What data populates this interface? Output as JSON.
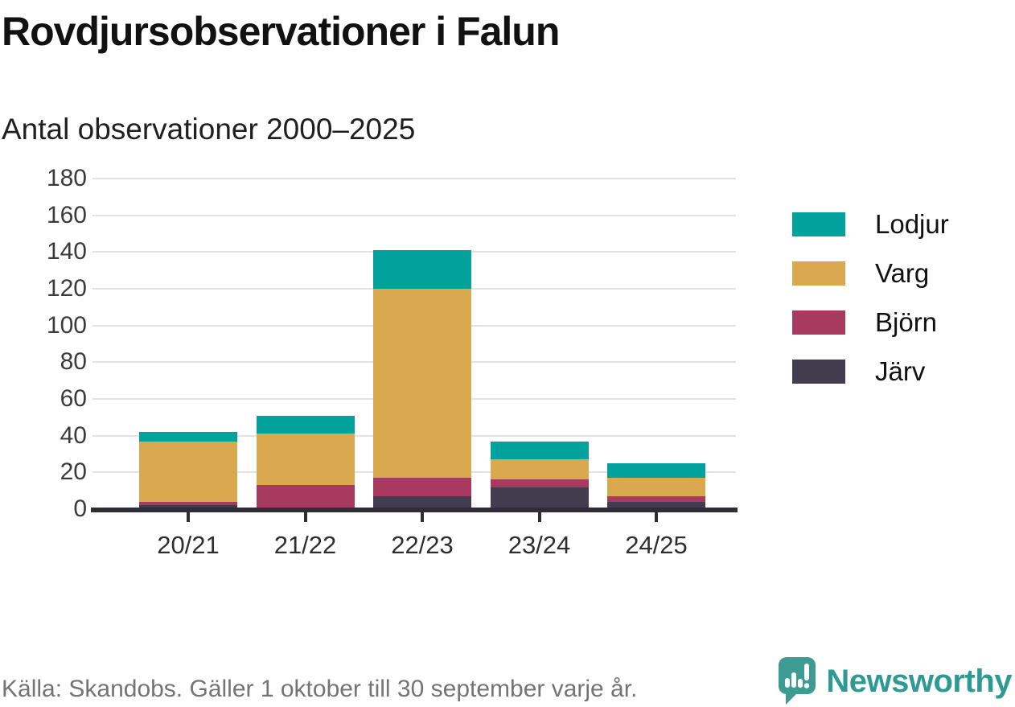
{
  "header": {
    "title": "Rovdjursobservationer i Falun",
    "subtitle": "Antal observationer 2000–2025"
  },
  "chart_data": {
    "type": "bar",
    "stacked": true,
    "categories": [
      "20/21",
      "21/22",
      "22/23",
      "23/24",
      "24/25"
    ],
    "series": [
      {
        "name": "Lodjur",
        "color": "#00a29b",
        "values": [
          5,
          10,
          21,
          10,
          8
        ]
      },
      {
        "name": "Varg",
        "color": "#d9a84f",
        "values": [
          33,
          28,
          103,
          11,
          10
        ]
      },
      {
        "name": "Björn",
        "color": "#a83a5f",
        "values": [
          2,
          13,
          10,
          4,
          3
        ]
      },
      {
        "name": "Järv",
        "color": "#413c4e",
        "values": [
          2,
          0,
          7,
          12,
          4
        ]
      }
    ],
    "totals": [
      42,
      51,
      141,
      37,
      25
    ],
    "title": "Rovdjursobservationer i Falun",
    "subtitle": "Antal observationer 2000–2025",
    "xlabel": "",
    "ylabel": "",
    "ylim": [
      0,
      180
    ],
    "ytick_step": 20,
    "grid": true,
    "legend_position": "right",
    "stack_order_bottom_to_top": [
      "Järv",
      "Björn",
      "Varg",
      "Lodjur"
    ]
  },
  "footer": {
    "source": "Källa: Skandobs. Gäller 1 oktober till 30 september varje år.",
    "brand": "Newsworthy",
    "brand_color": "#2e9a93",
    "logo_color": "#3d9b94"
  }
}
